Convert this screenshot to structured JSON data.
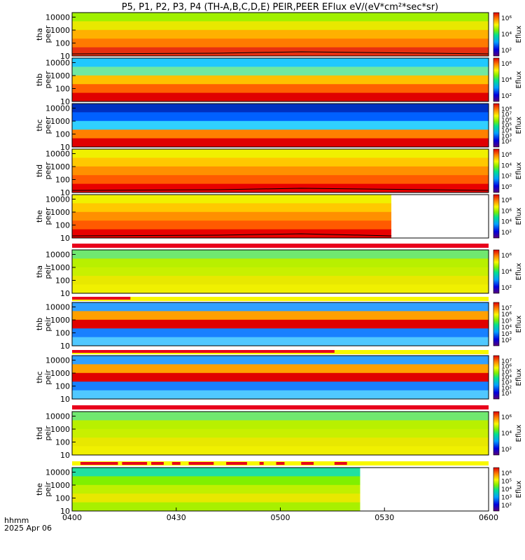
{
  "title": "P5, P1, P2, P3, P4 (TH-A,B,C,D,E) PEIR,PEER EFlux eV/(eV*cm²*sec*sr)",
  "footer": {
    "label_line1": "hhmm",
    "label_line2": "2025 Apr 06"
  },
  "colors": {
    "bar_red": "#e8001c",
    "bar_yellow": "#f8f800",
    "white_gap": "#ffffff"
  },
  "chart_data": {
    "type": "heatmap",
    "x_tick_labels": [
      "0400",
      "0430",
      "0500",
      "0530",
      "0600"
    ],
    "x_range": [
      "0400",
      "0600"
    ],
    "y_scale": "log",
    "y_tick_labels": [
      "10",
      "100",
      "1000",
      "10000"
    ],
    "colorbar_scale": "log",
    "panels": [
      {
        "name": "tha peer",
        "ylabel_line1": "tha",
        "ylabel_line2": "peer",
        "cb_label": "Eflux",
        "cb_ticks": [
          "10⁶",
          "10⁴",
          "10²"
        ],
        "style": "electron",
        "data_end": "0600",
        "boundary_line": true
      },
      {
        "name": "thb peer",
        "ylabel_line1": "thb",
        "ylabel_line2": "peer",
        "cb_label": "Eflux",
        "cb_ticks": [
          "10⁶",
          "10⁴",
          "10²"
        ],
        "style": "electron_cyan",
        "data_end": "0600"
      },
      {
        "name": "thc peer",
        "ylabel_line1": "thc",
        "ylabel_line2": "peer",
        "cb_label": "Eflux",
        "cb_ticks": [
          "10⁸",
          "10⁷",
          "10⁶",
          "10⁵",
          "10⁴",
          "10³",
          "10²"
        ],
        "style": "electron_blue",
        "data_end": "0600"
      },
      {
        "name": "thd peer",
        "ylabel_line1": "thd",
        "ylabel_line2": "peer",
        "cb_label": "Eflux",
        "cb_ticks": [
          "10⁶",
          "10⁴",
          "10²",
          "10⁰"
        ],
        "style": "electron_hot",
        "data_end": "0600",
        "boundary_line": true
      },
      {
        "name": "the peer",
        "ylabel_line1": "the",
        "ylabel_line2": "peer",
        "cb_label": "Eflux",
        "cb_ticks": [
          "10⁸",
          "10⁶",
          "10⁴",
          "10²"
        ],
        "style": "electron_hot",
        "data_end": "0532",
        "boundary_line": true
      },
      {
        "name": "tha peir",
        "ylabel_line1": "tha",
        "ylabel_line2": "peir",
        "cb_label": "Eflux",
        "cb_ticks": [
          "10⁶",
          "10⁴",
          "10²"
        ],
        "style": "ion_yellow",
        "data_end": "0600"
      },
      {
        "name": "thb peir",
        "ylabel_line1": "thb",
        "ylabel_line2": "peir",
        "cb_label": "Eflux",
        "cb_ticks": [
          "10⁷",
          "10⁶",
          "10⁵",
          "10⁴",
          "10³",
          "10²"
        ],
        "style": "ion_band",
        "data_end": "0600"
      },
      {
        "name": "thc peir",
        "ylabel_line1": "thc",
        "ylabel_line2": "peir",
        "cb_label": "Eflux",
        "cb_ticks": [
          "10⁷",
          "10⁶",
          "10⁵",
          "10⁴",
          "10³",
          "10²",
          "10¹"
        ],
        "style": "ion_band",
        "data_end": "0600"
      },
      {
        "name": "thd peir",
        "ylabel_line1": "thd",
        "ylabel_line2": "peir",
        "cb_label": "Eflux",
        "cb_ticks": [
          "10⁶",
          "10⁴",
          "10²"
        ],
        "style": "ion_yellow",
        "data_end": "0600"
      },
      {
        "name": "the peir",
        "ylabel_line1": "the",
        "ylabel_line2": "peir",
        "cb_label": "Eflux",
        "cb_ticks": [
          "10⁶",
          "10⁵",
          "10⁴",
          "10³",
          "10²"
        ],
        "style": "ion_green",
        "data_end": "0523"
      }
    ]
  }
}
